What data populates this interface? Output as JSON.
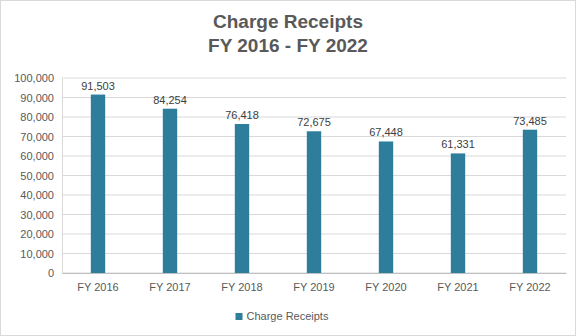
{
  "chart_data": {
    "type": "bar",
    "title": "Charge Receipts",
    "subtitle": "FY 2016 - FY 2022",
    "categories": [
      "FY 2016",
      "FY 2017",
      "FY 2018",
      "FY 2019",
      "FY 2020",
      "FY 2021",
      "FY 2022"
    ],
    "series": [
      {
        "name": "Charge Receipts",
        "color": "#2e7d9b",
        "values": [
          91503,
          84254,
          76418,
          72675,
          67448,
          61331,
          73485
        ],
        "value_labels": [
          "91,503",
          "84,254",
          "76,418",
          "72,675",
          "67,448",
          "61,331",
          "73,485"
        ]
      }
    ],
    "ylim": [
      0,
      100000
    ],
    "yticks": [
      0,
      {
        "value": 10000,
        "label": "10,000"
      },
      {
        "value": 20000,
        "label": "20,000"
      },
      {
        "value": 30000,
        "label": "30,000"
      },
      {
        "value": 40000,
        "label": "40,000"
      },
      {
        "value": 50000,
        "label": "50,000"
      },
      {
        "value": 60000,
        "label": "60,000"
      },
      {
        "value": 70000,
        "label": "70,000"
      },
      {
        "value": 80000,
        "label": "80,000"
      },
      {
        "value": 90000,
        "label": "90,000"
      },
      {
        "value": 100000,
        "label": "100,000"
      }
    ],
    "grid": true,
    "legend": "bottom",
    "data_labels": true
  }
}
